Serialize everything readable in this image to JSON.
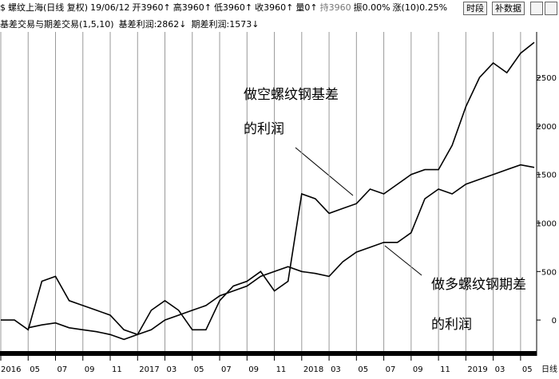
{
  "chart_data": {
    "type": "line",
    "header": [
      "螺纹上海(日线 复权)",
      "19/06/12",
      "开3960↑",
      "高3960↑",
      "低3960↑",
      "收3960↑",
      "量0↑",
      "持3960",
      "振0.00%",
      "涨(10)0.25%"
    ],
    "buttons": [
      "时段",
      "补数据"
    ],
    "indicator": "基差交易与期差交易(1,5,10)",
    "period_label": "日线",
    "x": [
      "2016-03",
      "2016-04",
      "2016-05",
      "2016-06",
      "2016-07",
      "2016-08",
      "2016-09",
      "2016-10",
      "2016-11",
      "2016-12",
      "2017-01",
      "2017-02",
      "2017-03",
      "2017-04",
      "2017-05",
      "2017-06",
      "2017-07",
      "2017-08",
      "2017-09",
      "2017-10",
      "2017-11",
      "2017-12",
      "2018-01",
      "2018-02",
      "2018-03",
      "2018-04",
      "2018-05",
      "2018-06",
      "2018-07",
      "2018-08",
      "2018-09",
      "2018-10",
      "2018-11",
      "2018-12",
      "2019-01",
      "2019-02",
      "2019-03",
      "2019-04",
      "2019-05",
      "2019-06"
    ],
    "series": [
      {
        "name": "基差利润:2862↓",
        "color": "#000000",
        "values": [
          0,
          0,
          -100,
          400,
          450,
          200,
          150,
          100,
          50,
          -100,
          -150,
          100,
          200,
          100,
          -100,
          -100,
          200,
          350,
          400,
          500,
          300,
          400,
          1300,
          1250,
          1100,
          1150,
          1200,
          1350,
          1300,
          1400,
          1500,
          1550,
          1550,
          1800,
          2200,
          2500,
          2650,
          2550,
          2750,
          2862
        ]
      },
      {
        "name": "期差利润:1573↓",
        "color": "#000000",
        "values": [
          null,
          null,
          -80,
          -50,
          -30,
          -80,
          -100,
          -120,
          -150,
          -200,
          -150,
          -100,
          0,
          50,
          100,
          150,
          250,
          300,
          350,
          450,
          500,
          550,
          500,
          480,
          450,
          600,
          700,
          750,
          800,
          800,
          900,
          1250,
          1350,
          1300,
          1400,
          1450,
          1500,
          1550,
          1600,
          1573
        ]
      }
    ],
    "xlim": [
      "2016-03",
      "2019-06"
    ],
    "xticks": [
      {
        "value": "2016-03",
        "label": "2016"
      },
      {
        "value": "2016-05",
        "label": "05"
      },
      {
        "value": "2016-07",
        "label": "07"
      },
      {
        "value": "2016-09",
        "label": "09"
      },
      {
        "value": "2016-11",
        "label": "11"
      },
      {
        "value": "2017-01",
        "label": "2017"
      },
      {
        "value": "2017-03",
        "label": "03"
      },
      {
        "value": "2017-05",
        "label": "05"
      },
      {
        "value": "2017-07",
        "label": "07"
      },
      {
        "value": "2017-09",
        "label": "09"
      },
      {
        "value": "2017-11",
        "label": "11"
      },
      {
        "value": "2018-01",
        "label": "2018"
      },
      {
        "value": "2018-03",
        "label": "03"
      },
      {
        "value": "2018-05",
        "label": "05"
      },
      {
        "value": "2018-07",
        "label": "07"
      },
      {
        "value": "2018-09",
        "label": "09"
      },
      {
        "value": "2018-11",
        "label": "11"
      },
      {
        "value": "2019-01",
        "label": "2019"
      },
      {
        "value": "2019-03",
        "label": "03"
      },
      {
        "value": "2019-05",
        "label": "05"
      }
    ],
    "ylim": [
      -320,
      2970
    ],
    "yticks": [
      0,
      500,
      1000,
      1500,
      2000,
      2500
    ],
    "annotations": [
      "做空螺纹钢基差",
      "的利润",
      "做多螺纹钢期差",
      "的利润"
    ]
  }
}
